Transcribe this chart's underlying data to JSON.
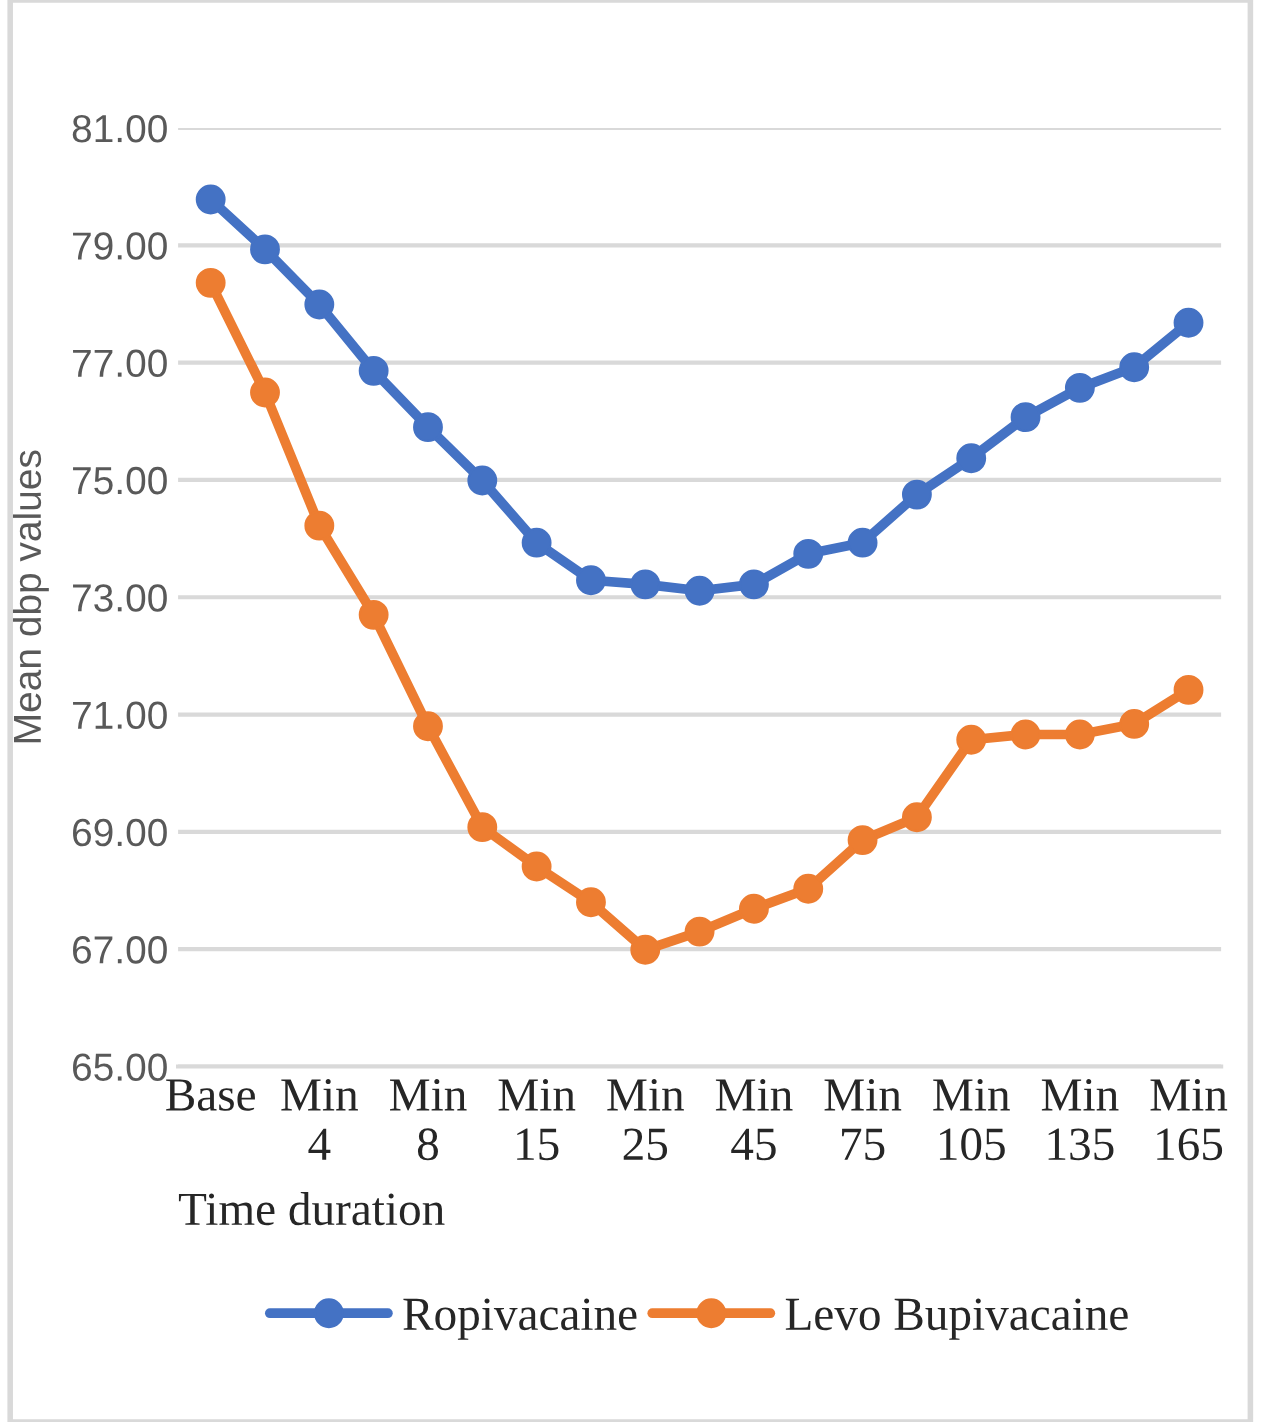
{
  "chart_data": {
    "type": "line",
    "xlabel": "Time duration",
    "ylabel": "Mean dbp values",
    "categories": [
      "Base",
      null,
      "Min\n4",
      null,
      "Min\n8",
      null,
      "Min\n15",
      null,
      "Min\n25",
      null,
      "Min\n45",
      null,
      "Min\n75",
      null,
      "Min\n105",
      null,
      "Min\n135",
      null,
      "Min\n165"
    ],
    "series": [
      {
        "name": "Ropivacaine",
        "color": "#4472c4",
        "values": [
          79.78,
          78.93,
          77.99,
          76.86,
          75.9,
          74.99,
          73.93,
          73.29,
          73.22,
          73.11,
          73.22,
          73.74,
          73.93,
          74.75,
          75.37,
          76.07,
          76.57,
          76.92,
          77.68
        ]
      },
      {
        "name": "Levo Bupivacaine",
        "color": "#ed7d31",
        "values": [
          78.36,
          76.49,
          74.22,
          72.7,
          70.8,
          69.08,
          68.41,
          67.8,
          66.99,
          67.3,
          67.69,
          68.03,
          68.86,
          69.25,
          70.57,
          70.66,
          70.66,
          70.84,
          71.42
        ]
      }
    ],
    "ylim": [
      65,
      81
    ],
    "yticks": [
      {
        "value": 65,
        "label": "65.00"
      },
      {
        "value": 67,
        "label": "67.00"
      },
      {
        "value": 69,
        "label": "69.00"
      },
      {
        "value": 71,
        "label": "71.00"
      },
      {
        "value": 73,
        "label": "73.00"
      },
      {
        "value": 75,
        "label": "75.00"
      },
      {
        "value": 77,
        "label": "77.00"
      },
      {
        "value": 79,
        "label": "79.00"
      },
      {
        "value": 81,
        "label": "81.00"
      }
    ],
    "grid": "y",
    "legend": "bottom",
    "marker": "circle",
    "line_style": "solid"
  }
}
